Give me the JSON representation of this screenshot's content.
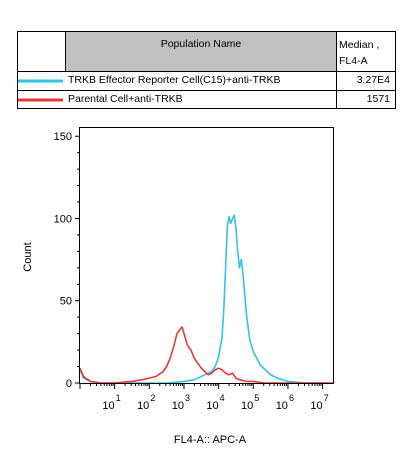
{
  "legend": {
    "header_population": "Population Name",
    "header_median": "Median ,\nFL4-A",
    "rows": [
      {
        "name": "TRKB Effector Reporter Cell(C15)+anti-TRKB",
        "median": "3.27E4",
        "color": "#33c3e6"
      },
      {
        "name": "Parental Cell+anti-TRKB",
        "median": "1571",
        "color": "#e8383b"
      }
    ]
  },
  "chart_data": {
    "type": "area",
    "xlabel": "FL4-A:: APC-A",
    "ylabel": "Count",
    "xscale": "log",
    "xlim": [
      0,
      7.3
    ],
    "ylim": [
      0,
      155
    ],
    "yticks": [
      0,
      50,
      100,
      150
    ],
    "xticks": [
      {
        "base": "10",
        "exp": "1"
      },
      {
        "base": "10",
        "exp": "2"
      },
      {
        "base": "10",
        "exp": "3"
      },
      {
        "base": "10",
        "exp": "4"
      },
      {
        "base": "10",
        "exp": "5"
      },
      {
        "base": "10",
        "exp": "6"
      },
      {
        "base": "10",
        "exp": "7"
      }
    ],
    "series": [
      {
        "name": "TRKB Effector Reporter Cell(C15)+anti-TRKB",
        "color": "#33c3e6",
        "log_x": [
          0.0,
          0.1,
          0.3,
          0.6,
          1.0,
          1.5,
          2.0,
          2.5,
          3.0,
          3.3,
          3.6,
          3.8,
          3.9,
          4.0,
          4.1,
          4.15,
          4.2,
          4.25,
          4.3,
          4.35,
          4.4,
          4.45,
          4.5,
          4.55,
          4.6,
          4.65,
          4.7,
          4.8,
          4.9,
          5.0,
          5.1,
          5.2,
          5.3,
          5.5,
          5.7,
          6.0,
          6.5,
          7.0,
          7.3
        ],
        "y": [
          8,
          3,
          1,
          0,
          0,
          0,
          0,
          0,
          1,
          2,
          5,
          7,
          10,
          16,
          28,
          45,
          70,
          95,
          101,
          97,
          100,
          102,
          94,
          80,
          70,
          75,
          67,
          42,
          26,
          19,
          15,
          11,
          9,
          5,
          3,
          1,
          0,
          0,
          0
        ]
      },
      {
        "name": "Parental Cell+anti-TRKB",
        "color": "#e8383b",
        "log_x": [
          0.0,
          0.1,
          0.3,
          0.6,
          1.0,
          1.5,
          1.8,
          2.0,
          2.2,
          2.4,
          2.5,
          2.6,
          2.7,
          2.8,
          2.9,
          2.95,
          3.0,
          3.1,
          3.2,
          3.3,
          3.4,
          3.5,
          3.6,
          3.7,
          3.8,
          3.9,
          4.0,
          4.1,
          4.2,
          4.3,
          4.4,
          4.5,
          4.6,
          4.8,
          5.0,
          5.3,
          5.6,
          6.0,
          7.3
        ],
        "y": [
          9,
          4,
          1,
          0,
          0,
          1,
          2,
          3,
          4,
          7,
          10,
          15,
          22,
          30,
          33,
          34,
          30,
          23,
          20,
          15,
          12,
          9,
          7,
          5,
          6,
          8,
          9,
          8,
          6,
          5,
          6,
          3,
          2,
          1,
          1,
          0,
          0,
          0,
          0
        ]
      }
    ]
  }
}
